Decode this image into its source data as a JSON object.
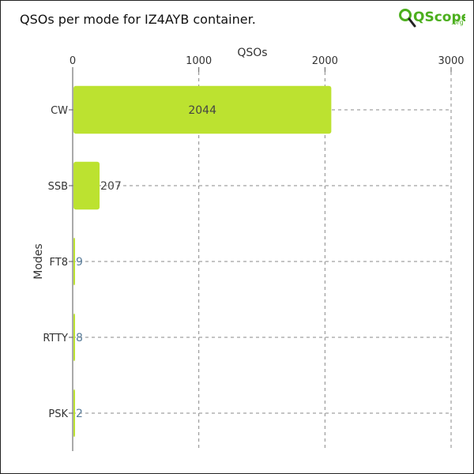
{
  "title": "QSOs per mode for IZ4AYB container.",
  "logo": {
    "text": "QScope",
    "suffix": ".org",
    "icon": "magnifier-q-icon"
  },
  "colors": {
    "bar": "#bce230",
    "grid": "#888888",
    "inner_label": "#444444",
    "outer_label": "#5a7d9a",
    "logo_green": "#4caf1e"
  },
  "chart_data": {
    "type": "bar",
    "orientation": "horizontal",
    "categories": [
      "CW",
      "SSB",
      "FT8",
      "RTTY",
      "PSK"
    ],
    "values": [
      2044,
      207,
      9,
      8,
      2
    ],
    "xlabel": "QSOs",
    "ylabel": "Modes",
    "xlim": [
      0,
      3000
    ],
    "xticks": [
      "0",
      "1000",
      "2000",
      "3000"
    ],
    "x_axis_position": "top",
    "grid": true,
    "data_labels": [
      "2044",
      "207",
      "9",
      "8",
      "2"
    ]
  }
}
